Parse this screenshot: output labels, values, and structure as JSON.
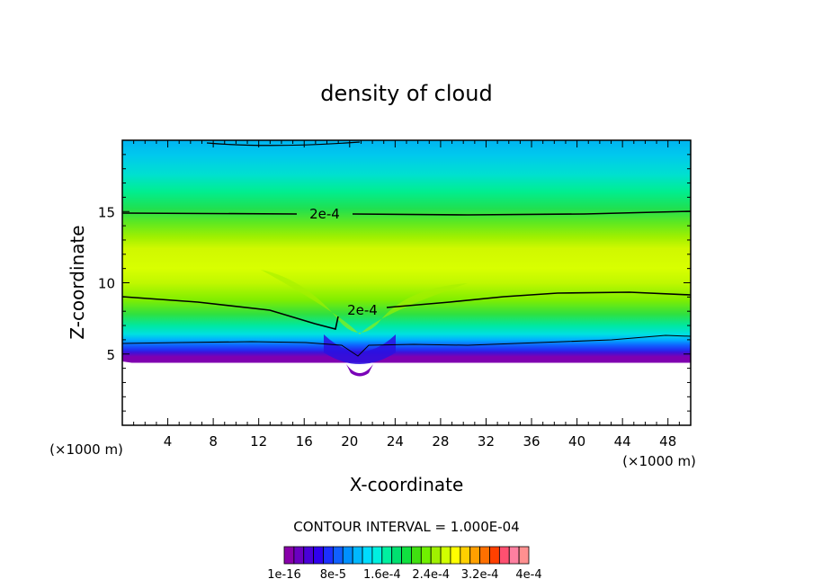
{
  "chart_data": {
    "type": "heatmap",
    "title": "density of cloud",
    "xlabel": "X-coordinate",
    "ylabel": "Z-coordinate",
    "x_unit": "(×1000 m)",
    "y_unit": "(×1000 m)",
    "xlim": [
      0,
      50
    ],
    "ylim": [
      0,
      20
    ],
    "x_ticks": [
      4,
      8,
      12,
      16,
      20,
      24,
      28,
      32,
      36,
      40,
      44,
      48
    ],
    "y_ticks": [
      5,
      10,
      15
    ],
    "contour_interval_text": "CONTOUR INTERVAL = 1.000E-04",
    "contour_label": "2e-4",
    "colorbar": {
      "colors": [
        "#8800aa",
        "#6a00c0",
        "#4a00d8",
        "#3000ee",
        "#1c30ff",
        "#1060ff",
        "#0090ff",
        "#00b8ff",
        "#00dcff",
        "#00f0e0",
        "#00f0a0",
        "#00e070",
        "#10e040",
        "#40e010",
        "#70f000",
        "#a0f000",
        "#d0ff00",
        "#ffff00",
        "#ffd000",
        "#ffa000",
        "#ff7000",
        "#ff4000",
        "#ff5070",
        "#ff80a0",
        "#ff9090"
      ],
      "labels": [
        "1e-16",
        "8e-5",
        "1.6e-4",
        "2.4e-4",
        "3.2e-4",
        "4e-4"
      ]
    }
  }
}
